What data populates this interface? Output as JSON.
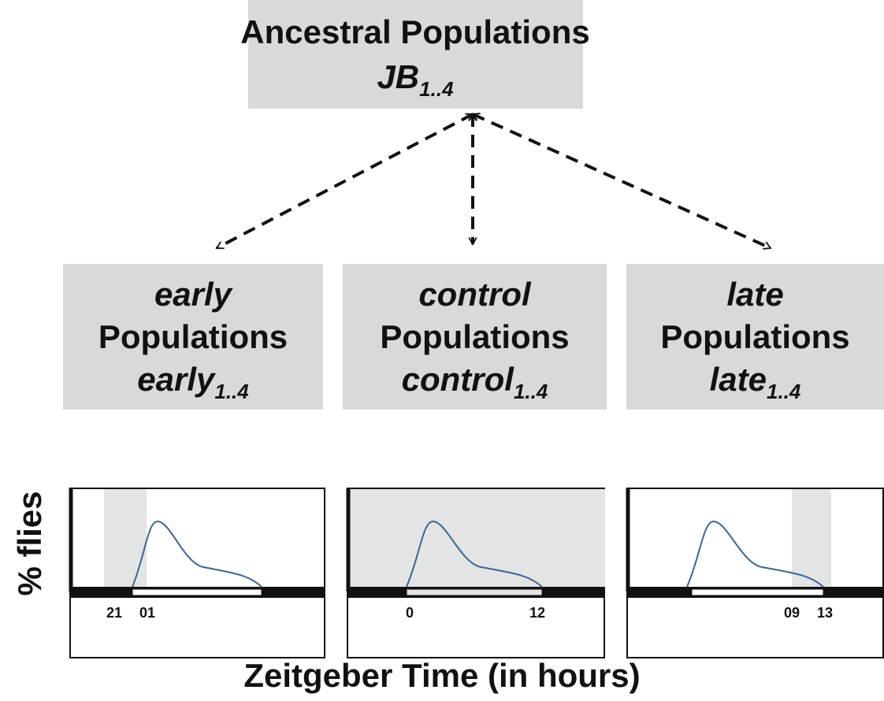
{
  "top_box": {
    "title": "Ancestral Populations",
    "code": "JB",
    "code_sub": "1..4"
  },
  "boxes": [
    {
      "name": "early",
      "label": "Populations",
      "code": "early",
      "code_sub": "1..4"
    },
    {
      "name": "control",
      "label": "Populations",
      "code": "control",
      "code_sub": "1..4"
    },
    {
      "name": "late",
      "label": "Populations",
      "code": "late",
      "code_sub": "1..4"
    }
  ],
  "panels": [
    {
      "tick_labels": [
        "21",
        "01"
      ]
    },
    {
      "tick_labels": [
        "0",
        "12"
      ]
    },
    {
      "tick_labels": [
        "09",
        "13"
      ]
    }
  ],
  "y_label": "% flies",
  "x_label": "Zeitgeber Time (in hours)"
}
